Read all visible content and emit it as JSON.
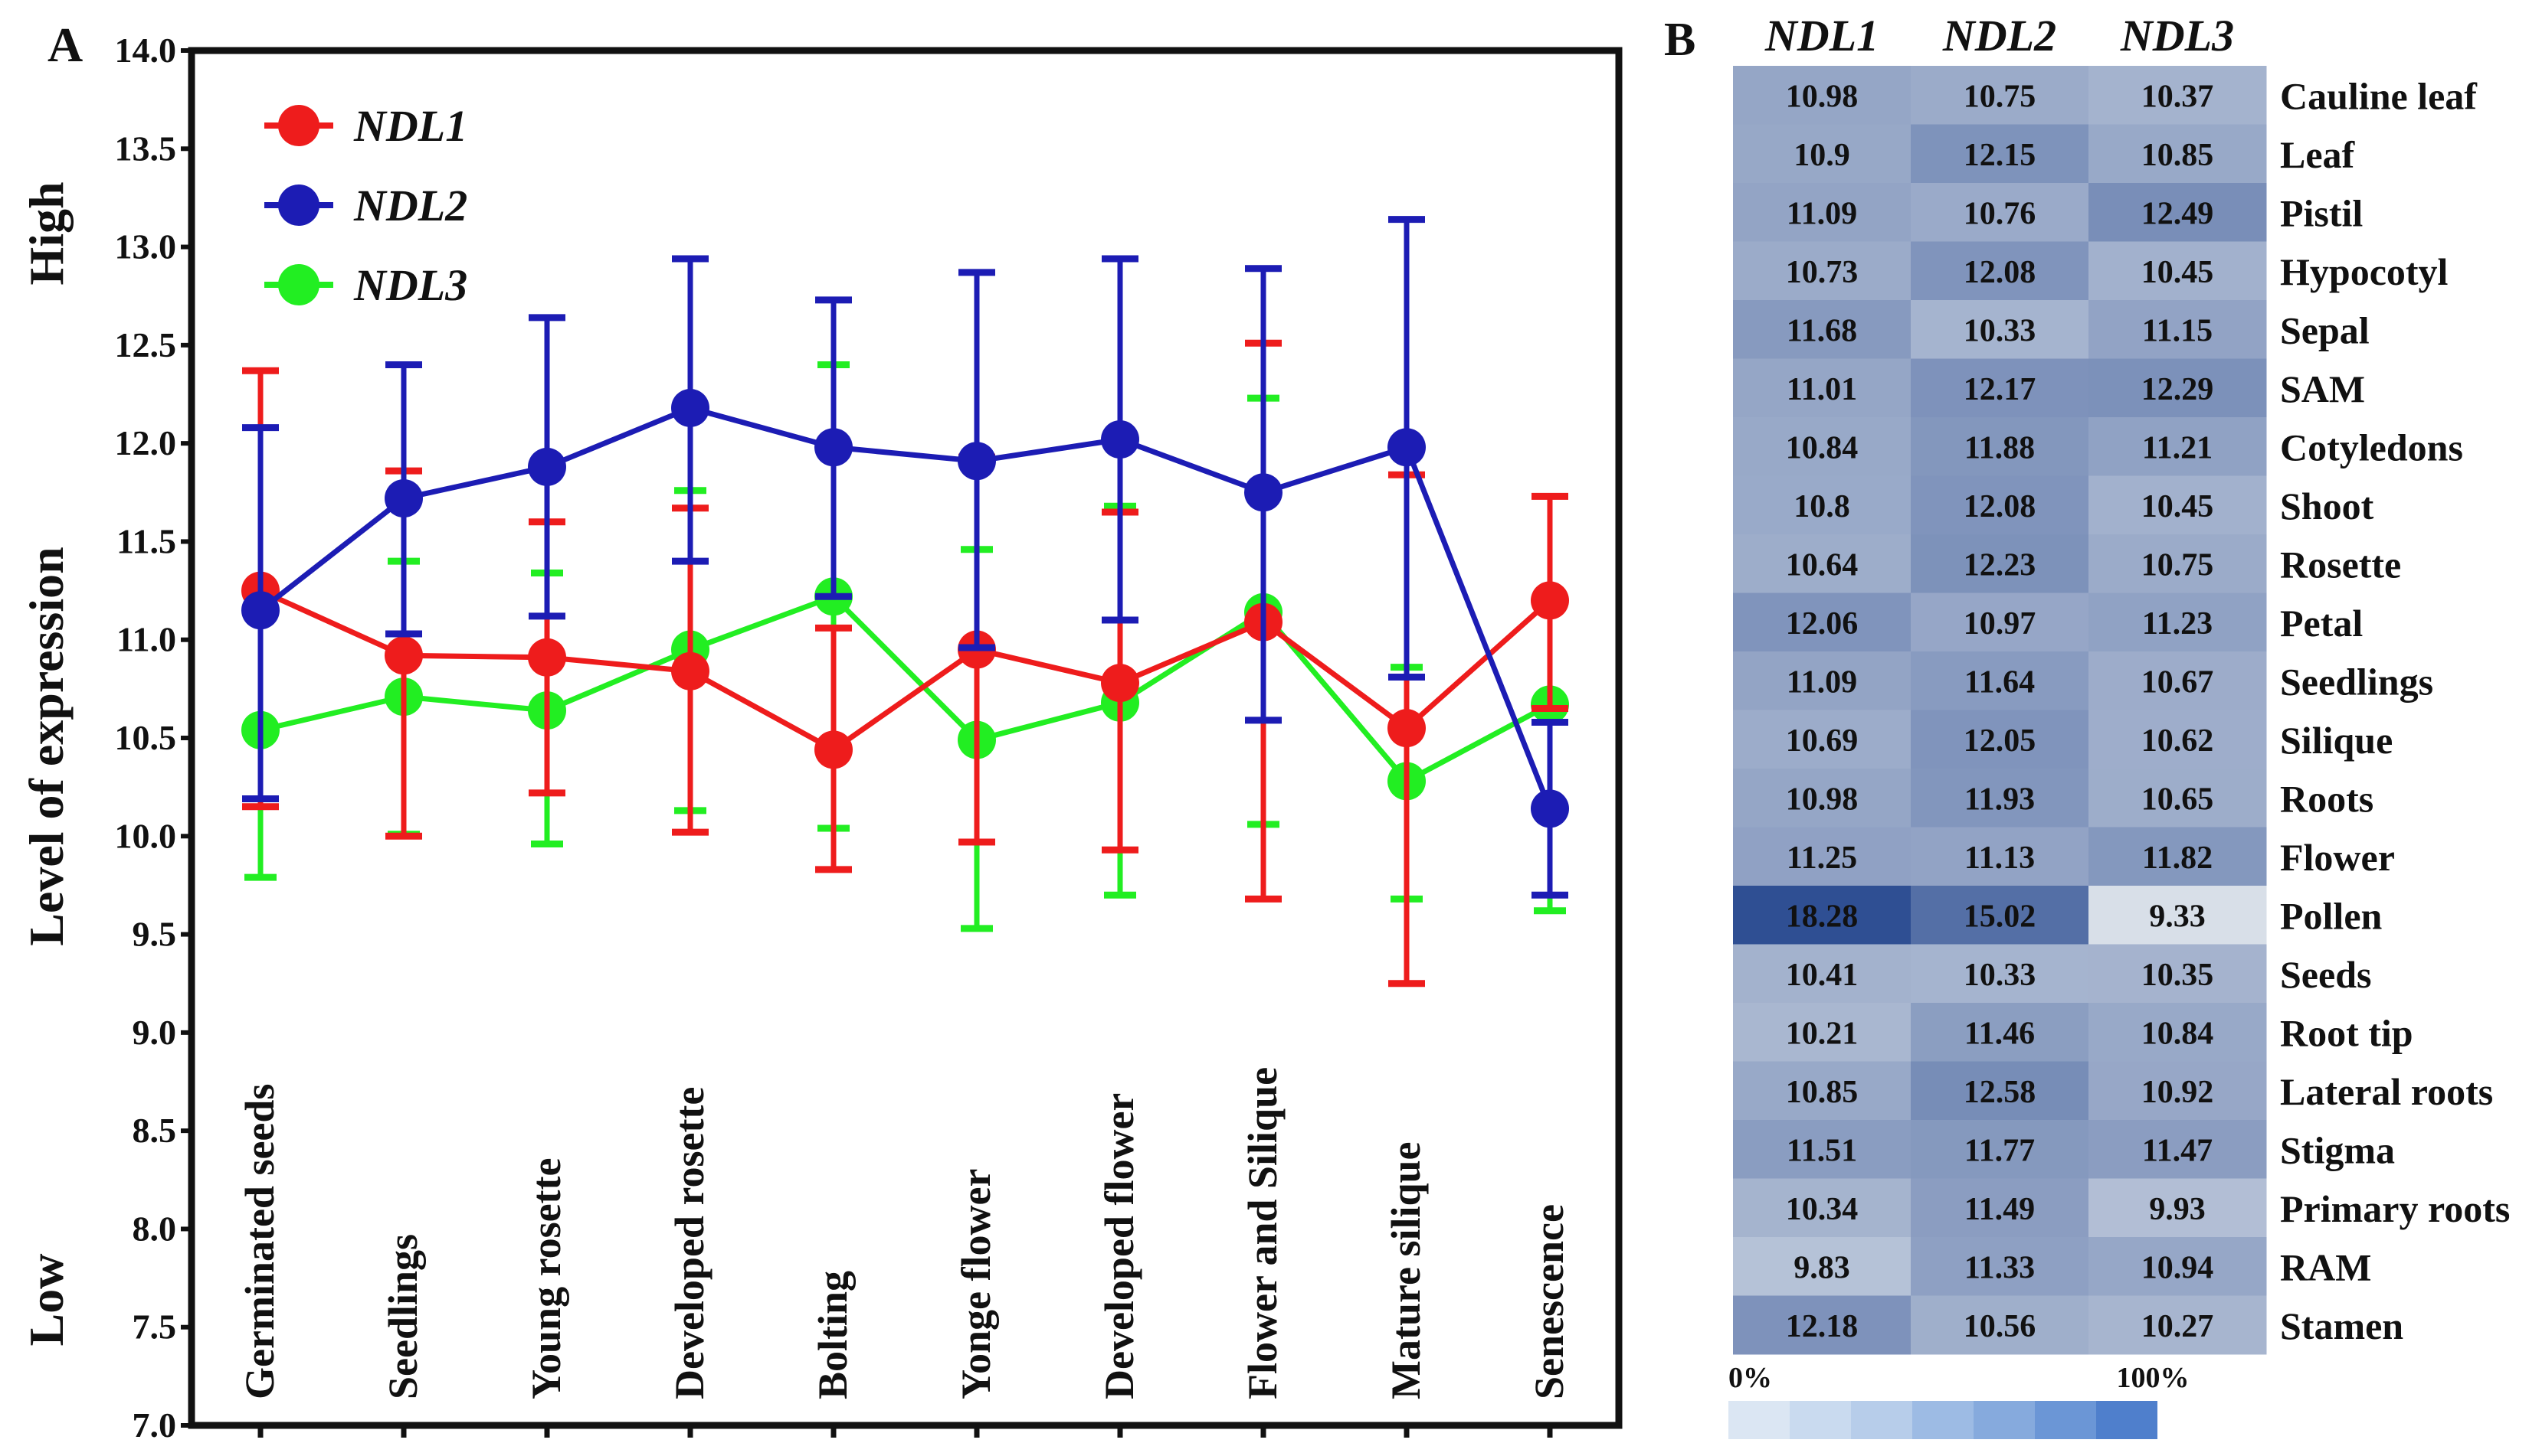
{
  "panel_a": {
    "label": "A",
    "y_axis_label": "Level of expression",
    "y_high_label": "High",
    "y_low_label": "Low"
  },
  "panel_b": {
    "label": "B",
    "scale_min_label": "0%",
    "scale_max_label": "100%"
  },
  "colors": {
    "NDL1": "#ee1c1c",
    "NDL2": "#1c1cb4",
    "NDL3": "#22ee22",
    "heatmap_low": "#d8dfe8",
    "heatmap_high": "#2f4f93"
  },
  "chart_data": [
    {
      "type": "line",
      "title": "",
      "xlabel": "",
      "ylabel": "Level of expression",
      "ylim": [
        7.0,
        14.0
      ],
      "yticks": [
        "7.0",
        "7.5",
        "8.0",
        "8.5",
        "9.0",
        "9.5",
        "10.0",
        "10.5",
        "11.0",
        "11.5",
        "12.0",
        "12.5",
        "13.0",
        "13.5",
        "14.0"
      ],
      "grid": false,
      "legend_position": "top-left",
      "categories": [
        "Germinated  seeds",
        "Seedlings",
        "Young rosette",
        "Developed rosette",
        "Bolting",
        "Yonge flower",
        "Developed flower",
        "Flower and Silique",
        "Mature silique",
        "Senescence"
      ],
      "series": [
        {
          "name": "NDL1",
          "values": [
            11.25,
            10.92,
            10.91,
            10.84,
            10.44,
            10.95,
            10.78,
            11.09,
            10.55,
            11.2
          ],
          "error_low": [
            10.15,
            10.0,
            10.22,
            10.02,
            9.83,
            9.97,
            9.93,
            9.68,
            9.25,
            10.65
          ],
          "error_high": [
            12.37,
            11.86,
            11.6,
            11.67,
            11.06,
            11.93,
            11.65,
            12.51,
            11.84,
            11.73
          ]
        },
        {
          "name": "NDL2",
          "values": [
            11.15,
            11.72,
            11.88,
            12.18,
            11.98,
            11.91,
            12.02,
            11.75,
            11.98,
            10.14
          ],
          "error_low": [
            10.19,
            11.03,
            11.12,
            11.4,
            11.22,
            10.96,
            11.1,
            10.59,
            10.81,
            9.7
          ],
          "error_high": [
            12.08,
            12.4,
            12.64,
            12.94,
            12.73,
            12.87,
            12.94,
            12.89,
            13.14,
            10.58
          ]
        },
        {
          "name": "NDL3",
          "values": [
            10.54,
            10.71,
            10.64,
            10.95,
            11.22,
            10.49,
            10.68,
            11.14,
            10.28,
            10.67
          ],
          "error_low": [
            9.79,
            10.01,
            9.96,
            10.13,
            10.04,
            9.53,
            9.7,
            10.06,
            9.68,
            9.62
          ],
          "error_high": [
            11.22,
            11.4,
            11.34,
            11.76,
            12.4,
            11.46,
            11.68,
            12.23,
            10.86,
            10.69
          ]
        }
      ]
    },
    {
      "type": "heatmap",
      "title": "",
      "columns": [
        "NDL1",
        "NDL2",
        "NDL3"
      ],
      "rows": [
        "Cauline leaf",
        "Leaf",
        "Pistil",
        "Hypocotyl",
        "Sepal",
        "SAM",
        "Cotyledons",
        "Shoot",
        "Rosette",
        "Petal",
        "Seedlings",
        "Silique",
        "Roots",
        "Flower",
        "Pollen",
        "Seeds",
        "Root tip",
        "Lateral roots",
        "Stigma",
        "Primary roots",
        "RAM",
        "Stamen"
      ],
      "values": [
        [
          "10.98",
          "10.75",
          "10.37"
        ],
        [
          "10.9",
          "12.15",
          "10.85"
        ],
        [
          "11.09",
          "10.76",
          "12.49"
        ],
        [
          "10.73",
          "12.08",
          "10.45"
        ],
        [
          "11.68",
          "10.33",
          "11.15"
        ],
        [
          "11.01",
          "12.17",
          "12.29"
        ],
        [
          "10.84",
          "11.88",
          "11.21"
        ],
        [
          "10.8",
          "12.08",
          "10.45"
        ],
        [
          "10.64",
          "12.23",
          "10.75"
        ],
        [
          "12.06",
          "10.97",
          "11.23"
        ],
        [
          "11.09",
          "11.64",
          "10.67"
        ],
        [
          "10.69",
          "12.05",
          "10.62"
        ],
        [
          "10.98",
          "11.93",
          "10.65"
        ],
        [
          "11.25",
          "11.13",
          "11.82"
        ],
        [
          "18.28",
          "15.02",
          "9.33"
        ],
        [
          "10.41",
          "10.33",
          "10.35"
        ],
        [
          "10.21",
          "11.46",
          "10.84"
        ],
        [
          "10.85",
          "12.58",
          "10.92"
        ],
        [
          "11.51",
          "11.77",
          "11.47"
        ],
        [
          "10.34",
          "11.49",
          "9.93"
        ],
        [
          "9.83",
          "11.33",
          "10.94"
        ],
        [
          "12.18",
          "10.56",
          "10.27"
        ]
      ],
      "legend_min": "0%",
      "legend_max": "100%"
    }
  ]
}
